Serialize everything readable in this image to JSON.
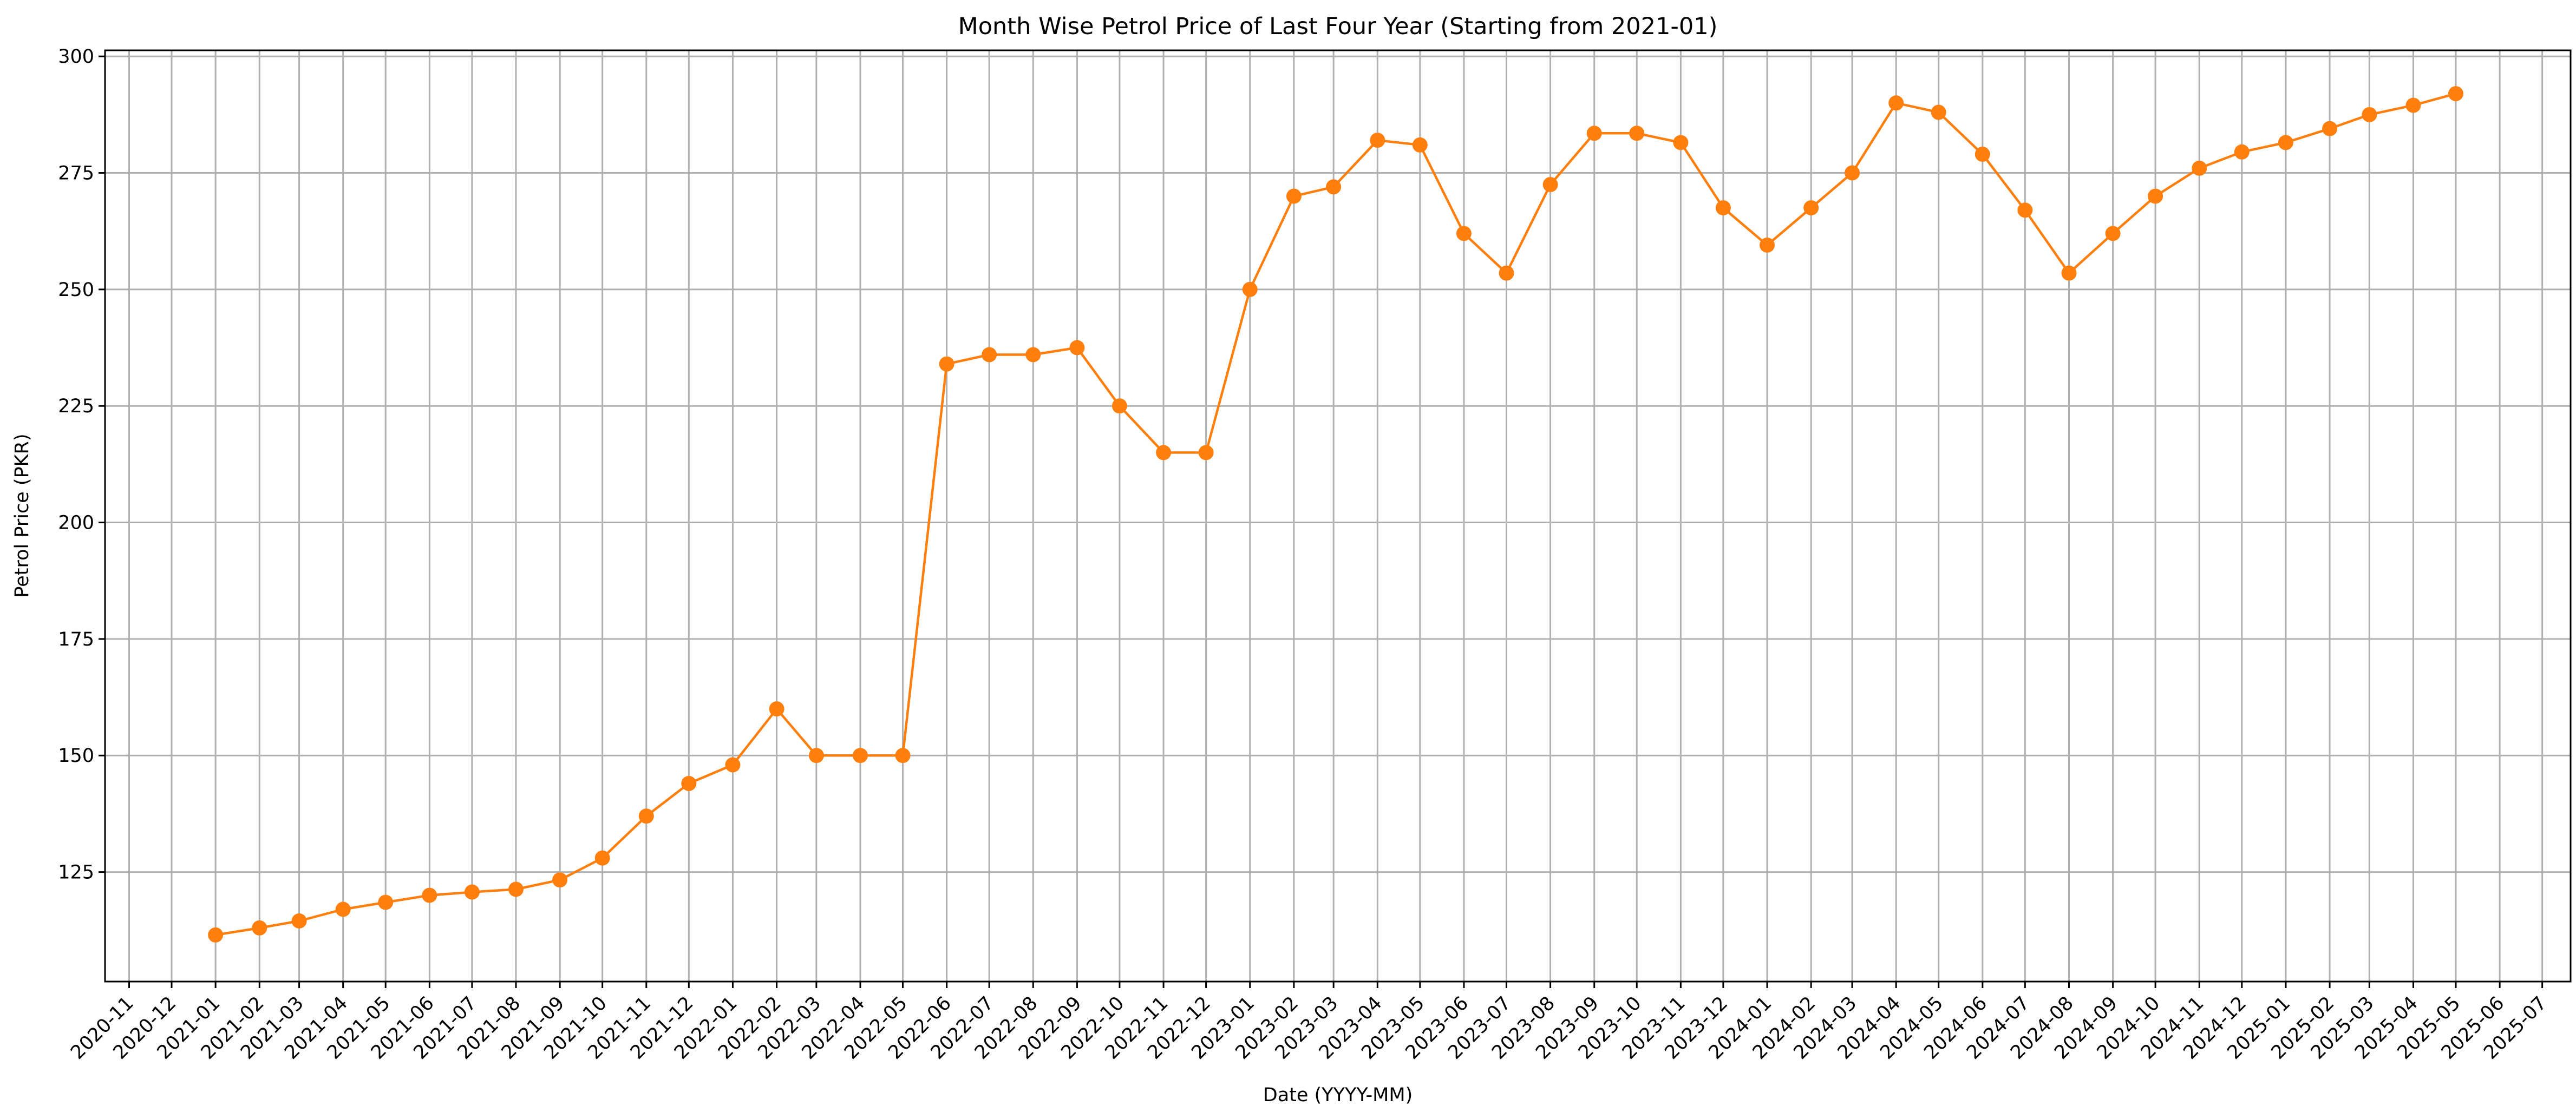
{
  "chart_data": {
    "type": "line",
    "title": "Month Wise Petrol Price of Last Four Year (Starting from 2021-01)",
    "xlabel": "Date (YYYY-MM)",
    "ylabel": "Petrol Price (PKR)",
    "xticks": [
      "2020-11",
      "2020-12",
      "2021-01",
      "2021-02",
      "2021-03",
      "2021-04",
      "2021-05",
      "2021-06",
      "2021-07",
      "2021-08",
      "2021-09",
      "2021-10",
      "2021-11",
      "2021-12",
      "2022-01",
      "2022-02",
      "2022-03",
      "2022-04",
      "2022-05",
      "2022-06",
      "2022-07",
      "2022-08",
      "2022-09",
      "2022-10",
      "2022-11",
      "2022-12",
      "2023-01",
      "2023-02",
      "2023-03",
      "2023-04",
      "2023-05",
      "2023-06",
      "2023-07",
      "2023-08",
      "2023-09",
      "2023-10",
      "2023-11",
      "2023-12",
      "2024-01",
      "2024-02",
      "2024-03",
      "2024-04",
      "2024-05",
      "2024-06",
      "2024-07",
      "2024-08",
      "2024-09",
      "2024-10",
      "2024-11",
      "2024-12",
      "2025-01",
      "2025-02",
      "2025-03",
      "2025-04",
      "2025-05",
      "2025-06",
      "2025-07"
    ],
    "yticks": [
      125,
      150,
      175,
      200,
      225,
      250,
      275,
      300
    ],
    "xlim": [
      "2020-10-15",
      "2025-07-21"
    ],
    "ylim": [
      101.5,
      301.3
    ],
    "grid": true,
    "color": "#ff7f0e",
    "series": [
      {
        "x": [
          "2021-01",
          "2021-02",
          "2021-03",
          "2021-04",
          "2021-05",
          "2021-06",
          "2021-07",
          "2021-08",
          "2021-09",
          "2021-10",
          "2021-11",
          "2021-12",
          "2022-01",
          "2022-02",
          "2022-03",
          "2022-04",
          "2022-05",
          "2022-06",
          "2022-07",
          "2022-08",
          "2022-09",
          "2022-10",
          "2022-11",
          "2022-12",
          "2023-01",
          "2023-02",
          "2023-03",
          "2023-04",
          "2023-05",
          "2023-06",
          "2023-07",
          "2023-08",
          "2023-09",
          "2023-10",
          "2023-11",
          "2023-12",
          "2024-01",
          "2024-02",
          "2024-03",
          "2024-04",
          "2024-05",
          "2024-06",
          "2024-07",
          "2024-08",
          "2024-09",
          "2024-10",
          "2024-11",
          "2024-12",
          "2025-01",
          "2025-02",
          "2025-03",
          "2025-04",
          "2025-05"
        ],
        "values": [
          111.5,
          113,
          114.5,
          117,
          118.5,
          120,
          120.7,
          121.3,
          123.3,
          128,
          137,
          144,
          148,
          160,
          150,
          150,
          150,
          234,
          236,
          236,
          237.5,
          225,
          215,
          215,
          250,
          270,
          272,
          282,
          281,
          262,
          253.5,
          272.5,
          283.5,
          283.5,
          281.5,
          267.5,
          259.5,
          267.5,
          275,
          290,
          288,
          279,
          267,
          253.5,
          262,
          270,
          276,
          279.5,
          281.5,
          284.5,
          287.5,
          289.5,
          292
        ]
      }
    ]
  }
}
